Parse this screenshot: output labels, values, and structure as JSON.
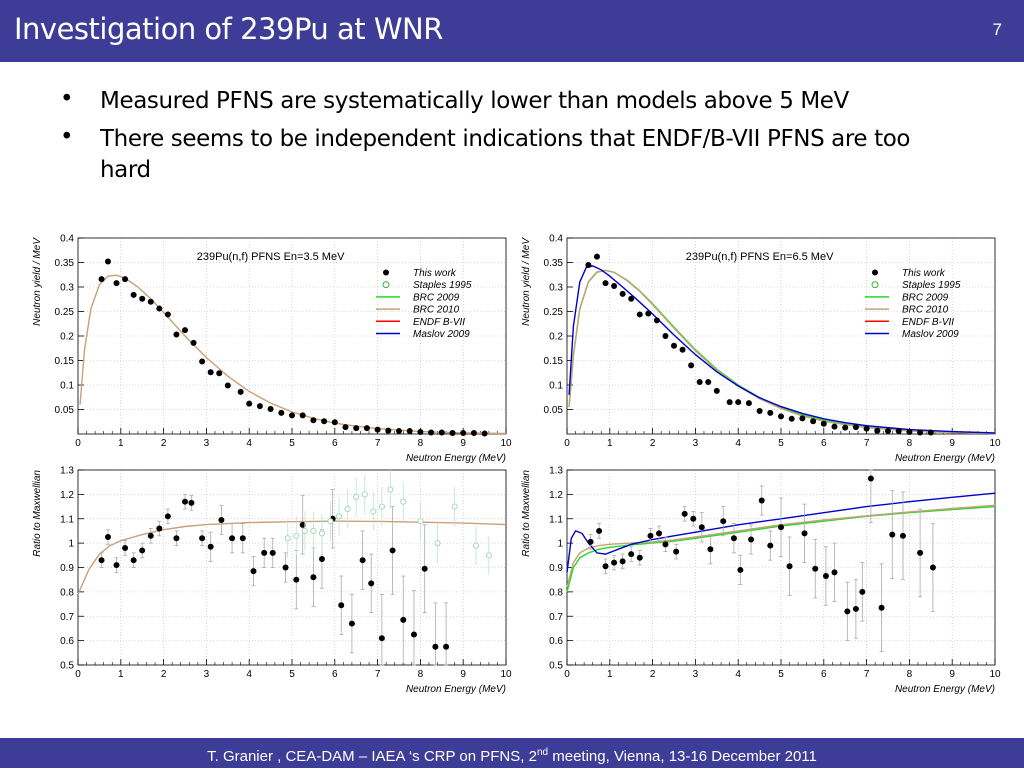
{
  "slide": {
    "title": "Investigation of 239Pu at WNR",
    "number": "7",
    "bullets": [
      "Measured PFNS are systematically lower than models above 5 MeV",
      "There seems to be independent indications that ENDF/B-VII PFNS are too hard"
    ],
    "footer_pre": "T. Granier ,  CEA-DAM – IAEA ‘s CRP on PFNS, 2",
    "footer_sup": "nd",
    "footer_post": " meeting,  Vienna, 13-16 December 2011"
  },
  "legend": [
    {
      "label": "This work",
      "kind": "dot",
      "color": "#000000"
    },
    {
      "label": "Staples 1995",
      "kind": "circle",
      "color": "#22aa22"
    },
    {
      "label": "BRC 2009",
      "kind": "line",
      "color": "#22dd22"
    },
    {
      "label": "BRC 2010",
      "kind": "line",
      "color": "#c8a07a"
    },
    {
      "label": "ENDF B-VII",
      "kind": "line",
      "color": "#ff0000"
    },
    {
      "label": "Maslov 2009",
      "kind": "line",
      "color": "#0000cc"
    }
  ],
  "chart_data": [
    {
      "type": "scatter",
      "title": "239Pu(n,f) PFNS En=3.5 MeV",
      "xlabel": "Neutron Energy (MeV)",
      "ylabel": "Neutron yield / MeV",
      "xlim": [
        0,
        10
      ],
      "ylim": [
        0,
        0.4
      ],
      "xticks": [
        "0",
        "1",
        "2",
        "3",
        "4",
        "5",
        "6",
        "7",
        "8",
        "9",
        "10"
      ],
      "yticks": [
        "0.05",
        "0.1",
        "0.15",
        "0.2",
        "0.25",
        "0.3",
        "0.35",
        "0.4"
      ],
      "grid": true,
      "series": [
        {
          "name": "This work",
          "x": [
            0.55,
            0.7,
            0.9,
            1.1,
            1.3,
            1.5,
            1.7,
            1.9,
            2.1,
            2.3,
            2.5,
            2.7,
            2.9,
            3.1,
            3.3,
            3.5,
            3.8,
            4.0,
            4.25,
            4.5,
            4.75,
            5.0,
            5.25,
            5.5,
            5.75,
            6.0,
            6.25,
            6.5,
            6.75,
            7.0,
            7.25,
            7.5,
            7.75,
            8.0,
            8.25,
            8.5,
            8.75,
            9.0,
            9.25,
            9.5
          ],
          "y": [
            0.316,
            0.352,
            0.308,
            0.316,
            0.284,
            0.276,
            0.27,
            0.256,
            0.244,
            0.203,
            0.212,
            0.186,
            0.148,
            0.126,
            0.124,
            0.099,
            0.086,
            0.062,
            0.057,
            0.051,
            0.043,
            0.038,
            0.038,
            0.028,
            0.026,
            0.024,
            0.014,
            0.012,
            0.012,
            0.009,
            0.007,
            0.006,
            0.006,
            0.004,
            0.003,
            0.003,
            0.002,
            0.002,
            0.002,
            0.001
          ]
        },
        {
          "name": "BRC 2010",
          "x": [
            0.05,
            0.15,
            0.3,
            0.5,
            0.7,
            0.9,
            1.1,
            1.4,
            1.7,
            2.0,
            2.5,
            3.0,
            3.5,
            4.0,
            4.5,
            5.0,
            5.5,
            6.0,
            6.5,
            7.0,
            8.0,
            9.0,
            10.0
          ],
          "y": [
            0.06,
            0.17,
            0.255,
            0.305,
            0.322,
            0.324,
            0.318,
            0.3,
            0.276,
            0.248,
            0.2,
            0.156,
            0.118,
            0.087,
            0.063,
            0.045,
            0.032,
            0.022,
            0.016,
            0.011,
            0.005,
            0.002,
            0.001
          ]
        }
      ]
    },
    {
      "type": "scatter",
      "title": "239Pu(n,f) PFNS En=6.5 MeV",
      "xlabel": "Neutron Energy (MeV)",
      "ylabel": "Neutron yield / MeV",
      "xlim": [
        0,
        10
      ],
      "ylim": [
        0,
        0.4
      ],
      "xticks": [
        "0",
        "1",
        "2",
        "3",
        "4",
        "5",
        "6",
        "7",
        "8",
        "9",
        "10"
      ],
      "yticks": [
        "0.05",
        "0.1",
        "0.15",
        "0.2",
        "0.25",
        "0.3",
        "0.35",
        "0.4"
      ],
      "grid": true,
      "series": [
        {
          "name": "This work",
          "x": [
            0.5,
            0.7,
            0.9,
            1.1,
            1.3,
            1.5,
            1.7,
            1.9,
            2.1,
            2.3,
            2.5,
            2.7,
            2.9,
            3.1,
            3.3,
            3.5,
            3.8,
            4.0,
            4.25,
            4.5,
            4.75,
            5.0,
            5.25,
            5.5,
            5.75,
            6.0,
            6.25,
            6.5,
            6.75,
            7.0,
            7.25,
            7.5,
            7.75,
            8.0,
            8.25,
            8.5
          ],
          "y": [
            0.345,
            0.362,
            0.308,
            0.302,
            0.286,
            0.276,
            0.244,
            0.246,
            0.232,
            0.2,
            0.18,
            0.172,
            0.14,
            0.106,
            0.106,
            0.088,
            0.065,
            0.065,
            0.063,
            0.047,
            0.043,
            0.036,
            0.031,
            0.032,
            0.026,
            0.021,
            0.015,
            0.013,
            0.014,
            0.011,
            0.007,
            0.006,
            0.006,
            0.004,
            0.003,
            0.003
          ]
        },
        {
          "name": "BRC 2009",
          "x": [
            0.05,
            0.15,
            0.3,
            0.5,
            0.7,
            0.9,
            1.1,
            1.4,
            1.7,
            2.0,
            2.5,
            3.0,
            3.5,
            4.0,
            4.5,
            5.0,
            5.5,
            6.0,
            6.5,
            7.0,
            8.0,
            9.0,
            10.0
          ],
          "y": [
            0.055,
            0.16,
            0.255,
            0.31,
            0.33,
            0.334,
            0.33,
            0.314,
            0.292,
            0.266,
            0.218,
            0.172,
            0.132,
            0.1,
            0.074,
            0.054,
            0.039,
            0.028,
            0.02,
            0.014,
            0.007,
            0.003,
            0.001
          ]
        },
        {
          "name": "BRC 2010",
          "x": [
            0.05,
            0.15,
            0.3,
            0.5,
            0.7,
            0.9,
            1.1,
            1.4,
            1.7,
            2.0,
            2.5,
            3.0,
            3.5,
            4.0,
            4.5,
            5.0,
            5.5,
            6.0,
            6.5,
            7.0,
            8.0,
            9.0,
            10.0
          ],
          "y": [
            0.056,
            0.162,
            0.257,
            0.311,
            0.331,
            0.334,
            0.33,
            0.313,
            0.291,
            0.264,
            0.216,
            0.17,
            0.13,
            0.098,
            0.072,
            0.052,
            0.037,
            0.026,
            0.019,
            0.013,
            0.006,
            0.003,
            0.001
          ]
        },
        {
          "name": "Maslov 2009",
          "x": [
            0.05,
            0.15,
            0.3,
            0.45,
            0.6,
            0.8,
            1.0,
            1.3,
            1.6,
            2.0,
            2.5,
            3.0,
            3.5,
            4.0,
            4.5,
            5.0,
            5.5,
            6.0,
            6.5,
            7.0,
            8.0,
            9.0,
            10.0
          ],
          "y": [
            0.08,
            0.22,
            0.31,
            0.34,
            0.343,
            0.335,
            0.322,
            0.3,
            0.277,
            0.245,
            0.202,
            0.162,
            0.127,
            0.098,
            0.074,
            0.056,
            0.042,
            0.031,
            0.023,
            0.017,
            0.009,
            0.005,
            0.002
          ]
        }
      ]
    },
    {
      "type": "scatter",
      "xlabel": "Neutron Energy (MeV)",
      "ylabel": "Ratio to Maxwellian",
      "xlim": [
        0,
        10
      ],
      "ylim": [
        0.5,
        1.3
      ],
      "xticks": [
        "0",
        "1",
        "2",
        "3",
        "4",
        "5",
        "6",
        "7",
        "8",
        "9",
        "10"
      ],
      "yticks": [
        "0.5",
        "0.6",
        "0.7",
        "0.8",
        "0.9",
        "1",
        "1.1",
        "1.2",
        "1.3"
      ],
      "grid": true,
      "series": [
        {
          "name": "This work",
          "x": [
            0.55,
            0.7,
            0.9,
            1.1,
            1.3,
            1.5,
            1.7,
            1.9,
            2.1,
            2.3,
            2.5,
            2.65,
            2.9,
            3.1,
            3.35,
            3.6,
            3.85,
            4.1,
            4.35,
            4.55,
            4.85,
            5.1,
            5.25,
            5.5,
            5.7,
            5.95,
            6.15,
            6.4,
            6.65,
            6.85,
            7.1,
            7.35,
            7.6,
            7.85,
            8.1,
            8.35,
            8.6
          ],
          "y": [
            0.93,
            1.025,
            0.91,
            0.98,
            0.93,
            0.97,
            1.03,
            1.06,
            1.11,
            1.02,
            1.17,
            1.165,
            1.02,
            0.985,
            1.095,
            1.02,
            1.02,
            0.885,
            0.96,
            0.96,
            0.9,
            0.85,
            1.075,
            0.86,
            0.935,
            1.1,
            0.745,
            0.67,
            0.93,
            0.835,
            0.61,
            0.97,
            0.685,
            0.625,
            0.895,
            0.575,
            0.575
          ]
        },
        {
          "name": "BRC 2010",
          "x": [
            0.0,
            0.25,
            0.5,
            0.75,
            1.0,
            1.5,
            2.0,
            2.5,
            3.0,
            4.0,
            5.0,
            6.0,
            7.0,
            8.0,
            9.0,
            10.0
          ],
          "y": [
            0.79,
            0.89,
            0.955,
            0.99,
            1.01,
            1.035,
            1.055,
            1.068,
            1.076,
            1.084,
            1.088,
            1.09,
            1.089,
            1.086,
            1.082,
            1.076
          ]
        },
        {
          "name": "Staples 1995",
          "x": [
            4.9,
            5.1,
            5.3,
            5.5,
            5.7,
            5.9,
            6.1,
            6.3,
            6.5,
            6.7,
            6.9,
            7.1,
            7.3,
            7.6,
            8.0,
            8.4,
            8.8,
            9.3,
            9.6
          ],
          "y": [
            1.02,
            1.03,
            1.05,
            1.05,
            1.04,
            1.09,
            1.11,
            1.14,
            1.19,
            1.2,
            1.13,
            1.15,
            1.22,
            1.17,
            1.09,
            1.0,
            1.15,
            0.99,
            0.95
          ]
        }
      ]
    },
    {
      "type": "scatter",
      "xlabel": "Neutron Energy (MeV)",
      "ylabel": "Ratio to Maxwellian",
      "xlim": [
        0,
        10
      ],
      "ylim": [
        0.5,
        1.3
      ],
      "xticks": [
        "0",
        "1",
        "2",
        "3",
        "4",
        "5",
        "6",
        "7",
        "8",
        "9",
        "10"
      ],
      "yticks": [
        "0.5",
        "0.6",
        "0.7",
        "0.8",
        "0.9",
        "1",
        "1.1",
        "1.2",
        "1.3"
      ],
      "grid": true,
      "series": [
        {
          "name": "This work",
          "x": [
            0.55,
            0.75,
            0.9,
            1.1,
            1.3,
            1.5,
            1.7,
            1.95,
            2.15,
            2.3,
            2.55,
            2.75,
            2.95,
            3.15,
            3.35,
            3.65,
            3.9,
            4.05,
            4.3,
            4.55,
            4.75,
            5.0,
            5.2,
            5.55,
            5.8,
            6.05,
            6.25,
            6.55,
            6.75,
            6.9,
            7.1,
            7.35,
            7.6,
            7.85,
            8.25,
            8.55
          ],
          "y": [
            1.005,
            1.05,
            0.905,
            0.92,
            0.925,
            0.955,
            0.94,
            1.03,
            1.04,
            0.995,
            0.965,
            1.12,
            1.1,
            1.065,
            0.975,
            1.09,
            1.02,
            0.89,
            1.015,
            1.175,
            0.99,
            1.065,
            0.905,
            1.04,
            0.895,
            0.865,
            0.88,
            0.72,
            0.73,
            0.8,
            1.265,
            0.735,
            1.035,
            1.03,
            0.96,
            0.9
          ]
        },
        {
          "name": "BRC 2009",
          "x": [
            0.0,
            0.15,
            0.3,
            0.5,
            0.75,
            1.0,
            1.5,
            2.0,
            2.5,
            3.0,
            4.0,
            5.0,
            6.0,
            7.0,
            8.0,
            9.0,
            10.0
          ],
          "y": [
            0.8,
            0.9,
            0.94,
            0.96,
            0.975,
            0.983,
            0.993,
            1.0,
            1.008,
            1.02,
            1.045,
            1.07,
            1.09,
            1.11,
            1.125,
            1.138,
            1.15
          ]
        },
        {
          "name": "BRC 2010",
          "x": [
            0.0,
            0.15,
            0.3,
            0.5,
            0.75,
            1.0,
            1.5,
            2.0,
            2.5,
            3.0,
            4.0,
            5.0,
            6.0,
            7.0,
            8.0,
            9.0,
            10.0
          ],
          "y": [
            0.82,
            0.92,
            0.96,
            0.98,
            0.99,
            0.995,
            1.0,
            1.005,
            1.013,
            1.025,
            1.05,
            1.075,
            1.095,
            1.112,
            1.128,
            1.142,
            1.155
          ]
        },
        {
          "name": "Maslov 2009",
          "x": [
            0.0,
            0.1,
            0.2,
            0.35,
            0.5,
            0.7,
            0.9,
            1.2,
            1.5,
            2.0,
            2.5,
            3.0,
            4.0,
            5.0,
            6.0,
            7.0,
            8.0,
            9.0,
            10.0
          ],
          "y": [
            0.88,
            1.02,
            1.05,
            1.04,
            1.0,
            0.96,
            0.955,
            0.975,
            0.995,
            1.015,
            1.03,
            1.045,
            1.075,
            1.1,
            1.125,
            1.15,
            1.17,
            1.188,
            1.205
          ]
        }
      ]
    }
  ]
}
